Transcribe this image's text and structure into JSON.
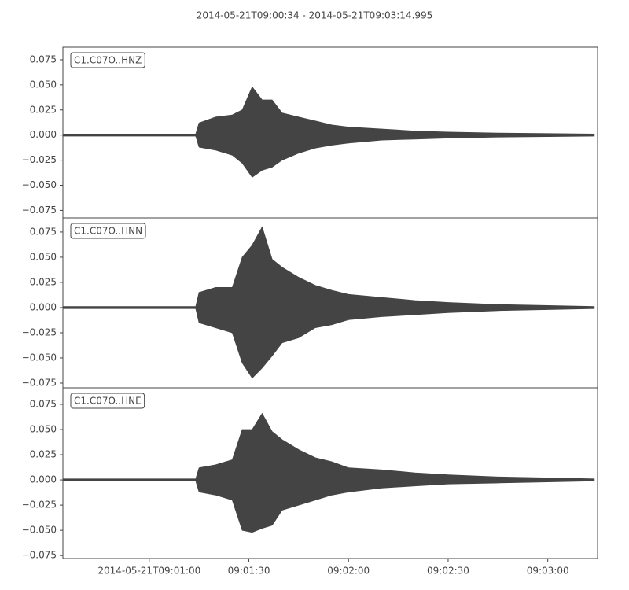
{
  "chart_data": {
    "type": "waveform",
    "title": "2014-05-21T09:00:34  -  2014-05-21T09:03:14.995",
    "color": "#444444",
    "xlim": [
      "2014-05-21T09:00:34",
      "2014-05-21T09:03:14.995"
    ],
    "xticks": [
      "2014-05-21T09:01:00",
      {
        "value": "2014-05-21T09:01:30",
        "label": "09:01:30"
      },
      {
        "value": "2014-05-21T09:02:00",
        "label": "09:02:00"
      },
      {
        "value": "2014-05-21T09:02:30",
        "label": "09:02:30"
      },
      {
        "value": "2014-05-21T09:03:00",
        "label": "09:03:00"
      }
    ],
    "x": [
      "2014-05-21T09:00:34",
      "2014-05-21T09:01:14",
      "2014-05-21T09:01:15",
      "2014-05-21T09:01:20",
      "2014-05-21T09:01:25",
      "2014-05-21T09:01:28",
      "2014-05-21T09:01:31",
      "2014-05-21T09:01:34",
      "2014-05-21T09:01:37",
      "2014-05-21T09:01:40",
      "2014-05-21T09:01:45",
      "2014-05-21T09:01:50",
      "2014-05-21T09:01:55",
      "2014-05-21T09:02:00",
      "2014-05-21T09:02:10",
      "2014-05-21T09:02:20",
      "2014-05-21T09:02:30",
      "2014-05-21T09:02:45",
      "2014-05-21T09:03:00",
      "2014-05-21T09:03:14"
    ],
    "panels": [
      {
        "label": "C1.C07O..HNZ",
        "ylim": [
          -0.0825,
          0.0875
        ],
        "yticks": [
          {
            "value": -0.075,
            "label": "−0.075"
          },
          {
            "value": -0.05,
            "label": "−0.050"
          },
          {
            "value": -0.025,
            "label": "−0.025"
          },
          {
            "value": 0,
            "label": "0.000"
          },
          {
            "value": 0.025,
            "label": "0.025"
          },
          {
            "value": 0.05,
            "label": "0.050"
          },
          {
            "value": 0.075,
            "label": "0.075"
          }
        ],
        "upper": [
          0.001,
          0.001,
          0.012,
          0.018,
          0.02,
          0.025,
          0.048,
          0.035,
          0.035,
          0.022,
          0.018,
          0.014,
          0.01,
          0.008,
          0.006,
          0.004,
          0.003,
          0.002,
          0.0015,
          0.001
        ],
        "lower": [
          -0.001,
          -0.001,
          -0.012,
          -0.015,
          -0.02,
          -0.028,
          -0.042,
          -0.035,
          -0.032,
          -0.025,
          -0.018,
          -0.013,
          -0.01,
          -0.008,
          -0.005,
          -0.004,
          -0.003,
          -0.002,
          -0.0015,
          -0.001
        ]
      },
      {
        "label": "C1.C07O..HNN",
        "ylim": [
          -0.0797,
          0.089
        ],
        "yticks": [
          {
            "value": -0.075,
            "label": "−0.075"
          },
          {
            "value": -0.05,
            "label": "−0.050"
          },
          {
            "value": -0.025,
            "label": "−0.025"
          },
          {
            "value": 0,
            "label": "0.000"
          },
          {
            "value": 0.025,
            "label": "0.025"
          },
          {
            "value": 0.05,
            "label": "0.050"
          },
          {
            "value": 0.075,
            "label": "0.075"
          }
        ],
        "upper": [
          0.001,
          0.001,
          0.015,
          0.02,
          0.02,
          0.05,
          0.062,
          0.08,
          0.048,
          0.04,
          0.03,
          0.022,
          0.017,
          0.013,
          0.01,
          0.007,
          0.005,
          0.003,
          0.002,
          0.001
        ],
        "lower": [
          -0.001,
          -0.001,
          -0.015,
          -0.02,
          -0.025,
          -0.055,
          -0.07,
          -0.06,
          -0.048,
          -0.035,
          -0.03,
          -0.02,
          -0.017,
          -0.012,
          -0.009,
          -0.007,
          -0.005,
          -0.003,
          -0.002,
          -0.001
        ]
      },
      {
        "label": "C1.C07O..HNE",
        "ylim": [
          -0.078,
          0.0914
        ],
        "yticks": [
          {
            "value": -0.075,
            "label": "−0.075"
          },
          {
            "value": -0.05,
            "label": "−0.050"
          },
          {
            "value": -0.025,
            "label": "−0.025"
          },
          {
            "value": 0,
            "label": "0.000"
          },
          {
            "value": 0.025,
            "label": "0.025"
          },
          {
            "value": 0.05,
            "label": "0.050"
          },
          {
            "value": 0.075,
            "label": "0.075"
          }
        ],
        "upper": [
          0.001,
          0.001,
          0.012,
          0.015,
          0.02,
          0.05,
          0.05,
          0.066,
          0.048,
          0.04,
          0.03,
          0.022,
          0.018,
          0.012,
          0.01,
          0.007,
          0.005,
          0.003,
          0.002,
          0.001
        ],
        "lower": [
          -0.001,
          -0.001,
          -0.012,
          -0.015,
          -0.02,
          -0.05,
          -0.052,
          -0.048,
          -0.045,
          -0.03,
          -0.025,
          -0.02,
          -0.015,
          -0.012,
          -0.008,
          -0.006,
          -0.004,
          -0.003,
          -0.002,
          -0.001
        ]
      }
    ]
  }
}
